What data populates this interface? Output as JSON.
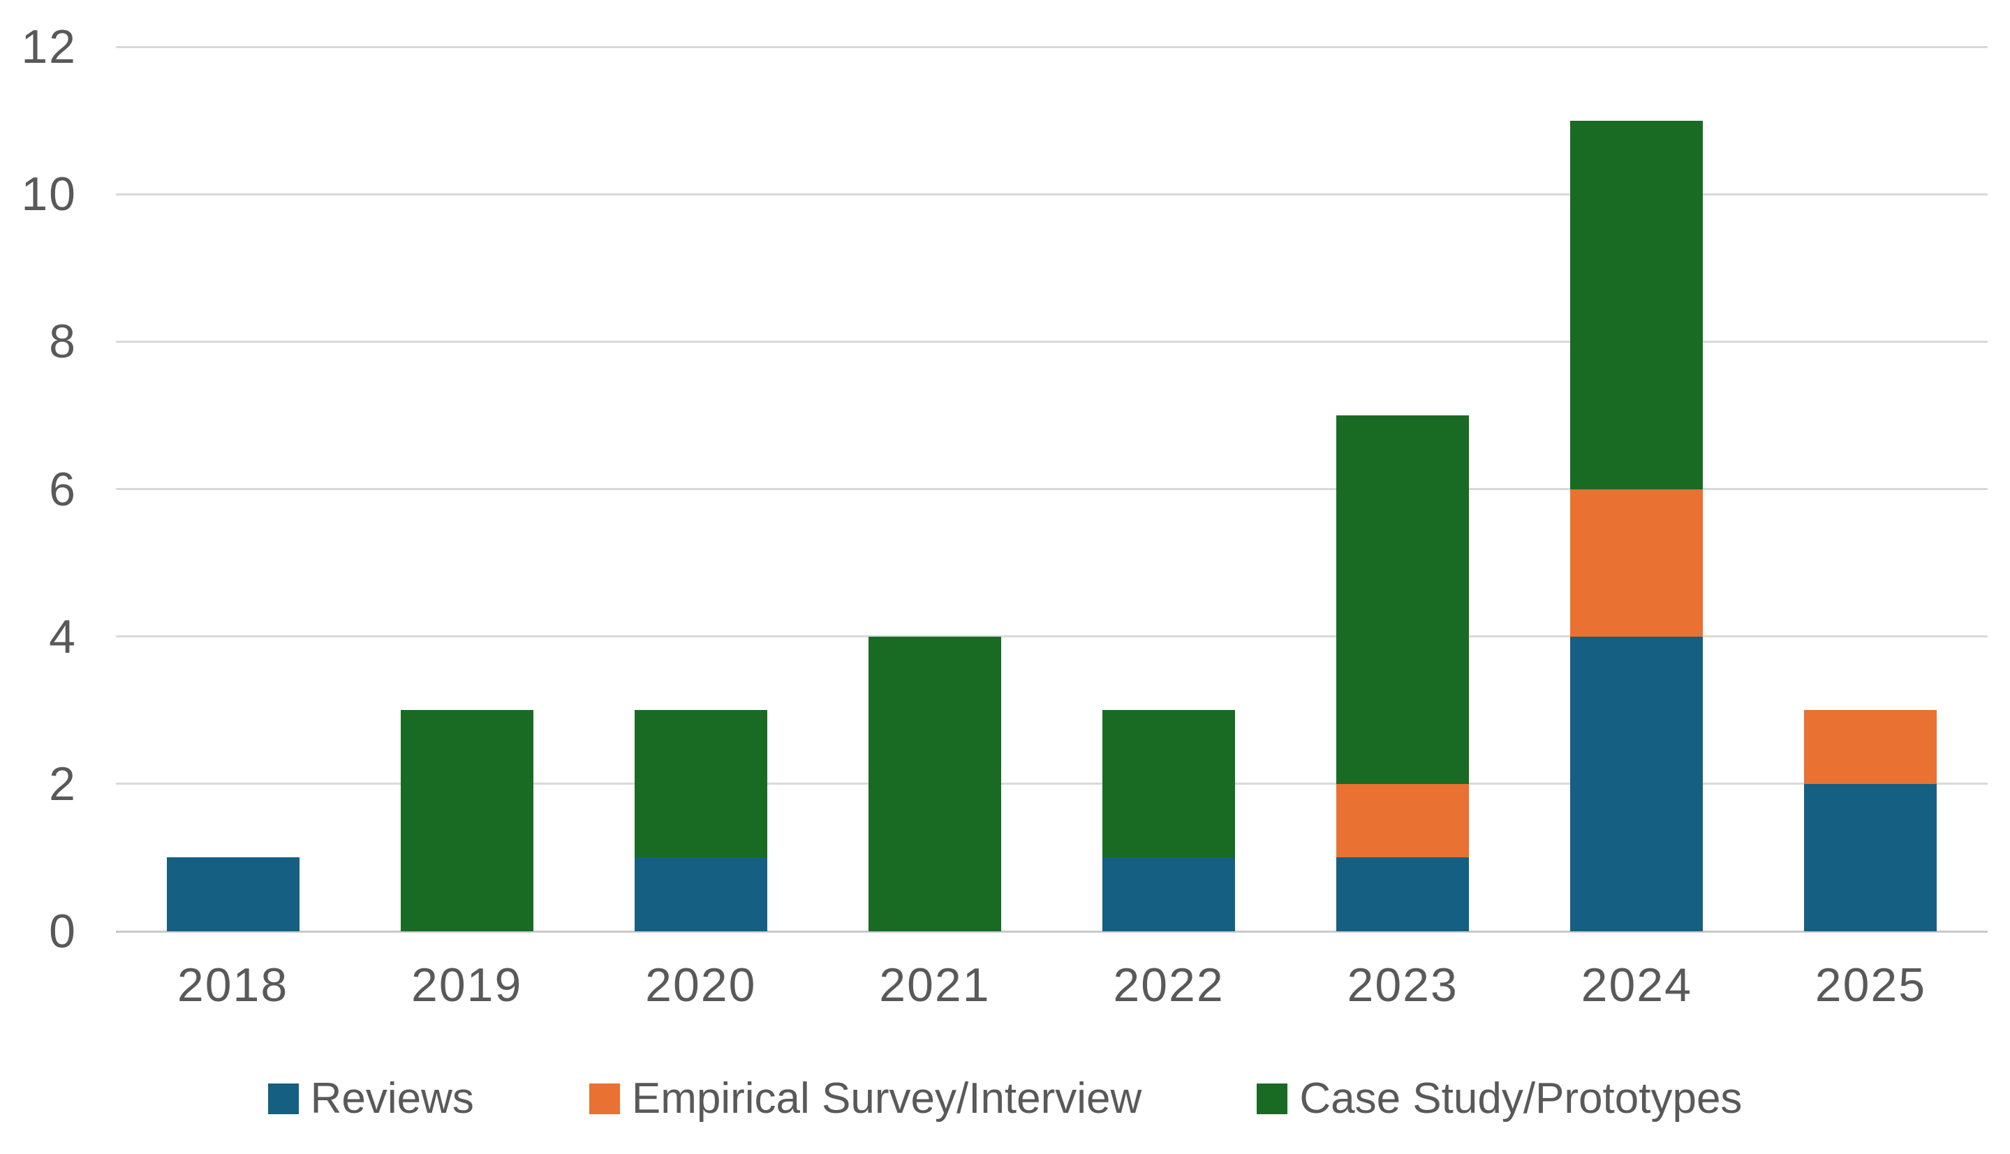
{
  "chart_data": {
    "type": "bar",
    "stacked": true,
    "title": "",
    "xlabel": "",
    "ylabel": "",
    "categories": [
      "2018",
      "2019",
      "2020",
      "2021",
      "2022",
      "2023",
      "2024",
      "2025"
    ],
    "series": [
      {
        "name": "Reviews",
        "color": "#156082",
        "values": [
          1,
          0,
          1,
          0,
          1,
          1,
          4,
          2
        ]
      },
      {
        "name": "Empirical Survey/Interview",
        "color": "#E97132",
        "values": [
          0,
          0,
          0,
          0,
          0,
          1,
          2,
          1
        ]
      },
      {
        "name": "Case Study/Prototypes",
        "color": "#196B24",
        "values": [
          0,
          3,
          2,
          4,
          2,
          5,
          5,
          0
        ]
      }
    ],
    "totals": [
      1,
      3,
      3,
      4,
      3,
      7,
      11,
      3
    ],
    "ylim": [
      0,
      12
    ],
    "yticks": [
      0,
      2,
      4,
      6,
      8,
      10,
      12
    ],
    "grid": true,
    "legend_position": "bottom",
    "colors": {
      "axis_text": "#595959",
      "gridline": "#D9D9D9",
      "axis_line": "#C9C9C9",
      "background": "#FFFFFF"
    }
  }
}
